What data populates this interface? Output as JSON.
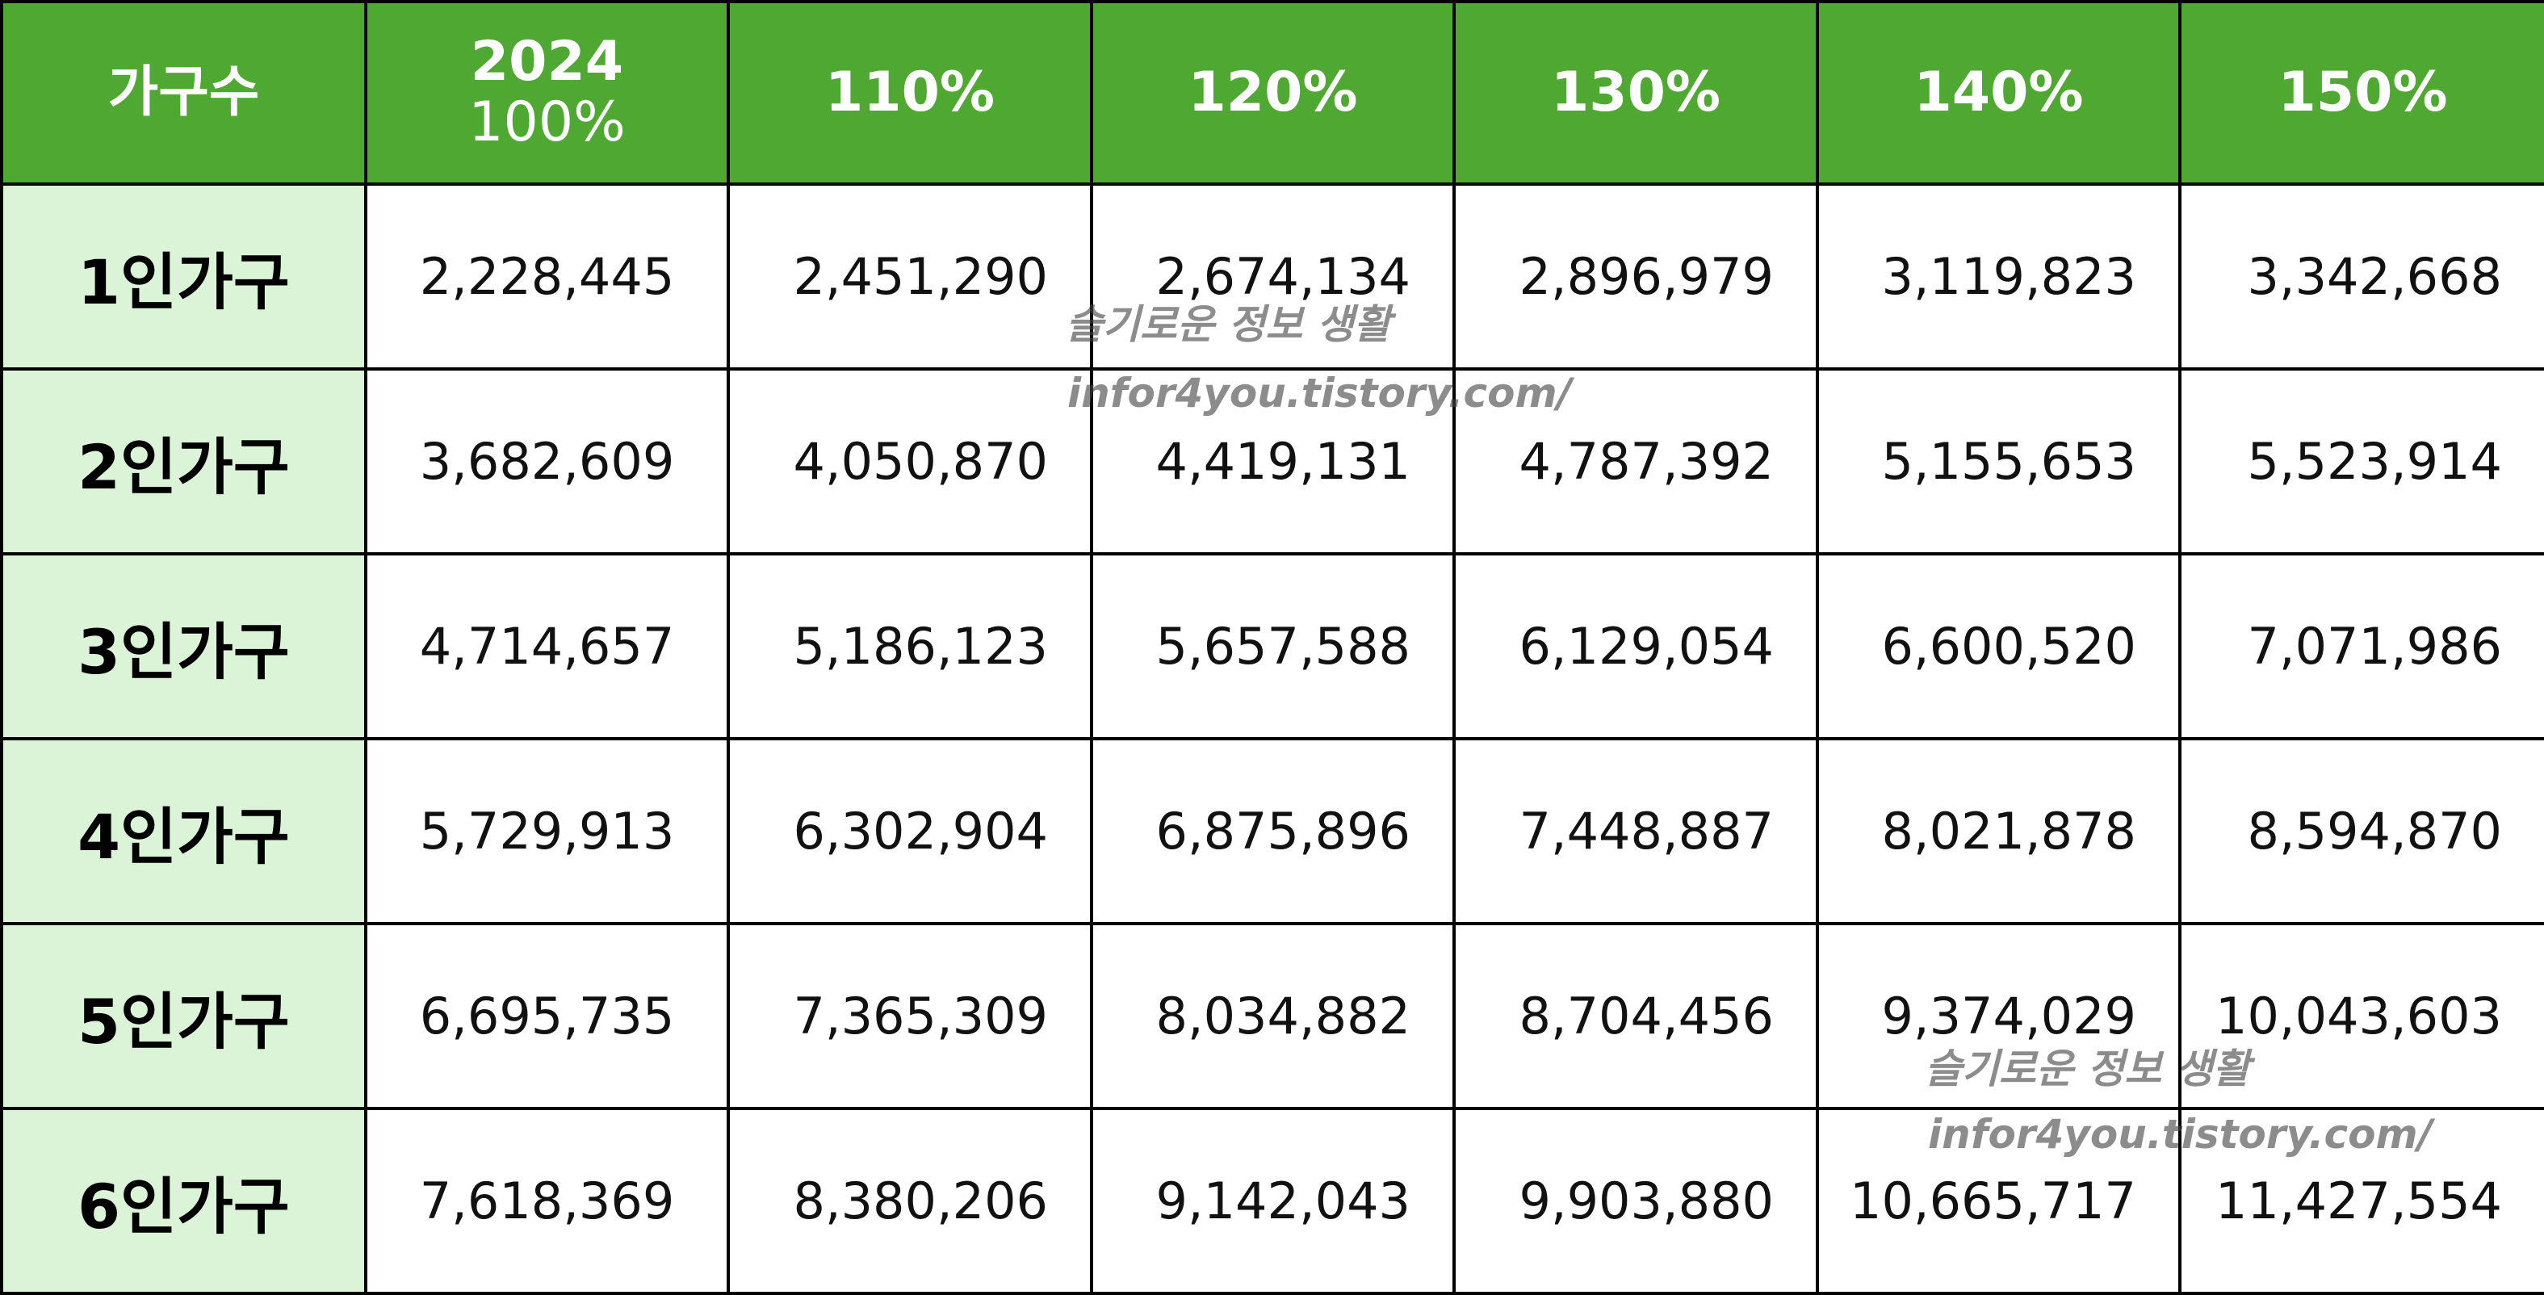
{
  "table": {
    "header": {
      "row_label": "가구수",
      "base_year": "2024",
      "base_pct": "100%",
      "columns": [
        "110%",
        "120%",
        "130%",
        "140%",
        "150%"
      ]
    },
    "rows": [
      {
        "label": "1인가구",
        "values": [
          "2,228,445",
          "2,451,290",
          "2,674,134",
          "2,896,979",
          "3,119,823",
          "3,342,668"
        ]
      },
      {
        "label": "2인가구",
        "values": [
          "3,682,609",
          "4,050,870",
          "4,419,131",
          "4,787,392",
          "5,155,653",
          "5,523,914"
        ]
      },
      {
        "label": "3인가구",
        "values": [
          "4,714,657",
          "5,186,123",
          "5,657,588",
          "6,129,054",
          "6,600,520",
          "7,071,986"
        ]
      },
      {
        "label": "4인가구",
        "values": [
          "5,729,913",
          "6,302,904",
          "6,875,896",
          "7,448,887",
          "8,021,878",
          "8,594,870"
        ]
      },
      {
        "label": "5인가구",
        "values": [
          "6,695,735",
          "7,365,309",
          "8,034,882",
          "8,704,456",
          "9,374,029",
          "10,043,603"
        ]
      },
      {
        "label": "6인가구",
        "values": [
          "7,618,369",
          "8,380,206",
          "9,142,043",
          "9,903,880",
          "10,665,717",
          "11,427,554"
        ]
      }
    ]
  },
  "watermarks": [
    {
      "line1": "슬기로운 정보 생활",
      "line2": "infor4you.tistory.com/"
    },
    {
      "line1": "슬기로운 정보 생활",
      "line2": "infor4you.tistory.com/"
    }
  ],
  "colors": {
    "header_bg": "#4fa831",
    "row_label_bg": "#dbf3d6",
    "grid_line": "#000000"
  }
}
